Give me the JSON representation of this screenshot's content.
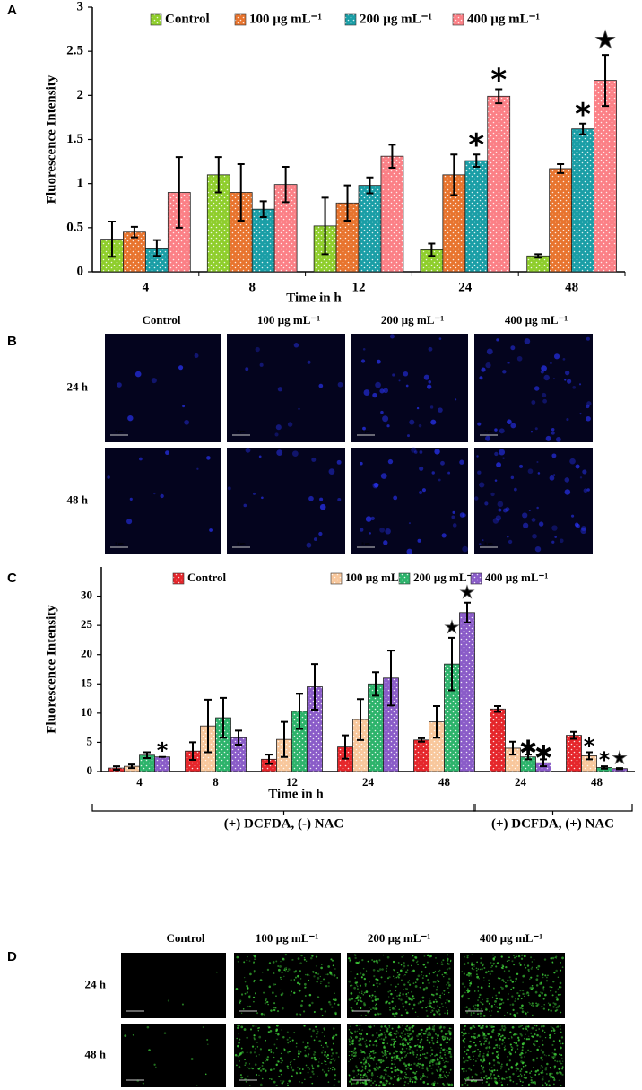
{
  "chart_data": [
    {
      "type": "bar",
      "panel": "A",
      "xlabel": "Time in h",
      "ylabel": "Fluorescence Intensity",
      "categories": [
        "4",
        "8",
        "12",
        "24",
        "48"
      ],
      "ylim": [
        0,
        3
      ],
      "yticks": [
        0,
        0.5,
        1,
        1.5,
        2,
        2.5,
        3
      ],
      "series": [
        {
          "name": "Control",
          "color": "#8fce2c",
          "values": [
            0.37,
            1.1,
            0.52,
            0.25,
            0.18
          ],
          "errors": [
            0.2,
            0.2,
            0.32,
            0.07,
            0.02
          ],
          "markers": [
            null,
            null,
            null,
            null,
            null
          ]
        },
        {
          "name": "100 µg mL⁻¹",
          "color": "#e8742e",
          "values": [
            0.45,
            0.9,
            0.78,
            1.1,
            1.17
          ],
          "errors": [
            0.06,
            0.32,
            0.2,
            0.23,
            0.05
          ],
          "markers": [
            null,
            null,
            null,
            null,
            null
          ]
        },
        {
          "name": "200 µg mL⁻¹",
          "color": "#1a9ea6",
          "values": [
            0.27,
            0.71,
            0.98,
            1.26,
            1.62
          ],
          "errors": [
            0.09,
            0.09,
            0.09,
            0.07,
            0.06
          ],
          "markers": [
            null,
            null,
            null,
            "*",
            "*"
          ]
        },
        {
          "name": "400 µg mL⁻¹",
          "color": "#fb8086",
          "values": [
            0.9,
            0.99,
            1.31,
            1.99,
            2.17
          ],
          "errors": [
            0.4,
            0.2,
            0.13,
            0.08,
            0.29
          ],
          "markers": [
            null,
            null,
            null,
            "*",
            "★"
          ]
        }
      ]
    },
    {
      "type": "bar",
      "panel": "C",
      "xlabel": "Time in h",
      "ylabel": "Fluorescence Intensity",
      "categories": [
        "4",
        "8",
        "12",
        "24",
        "48",
        "24",
        "48"
      ],
      "groups": [
        {
          "label": "(+) DCFDA, (-) NAC",
          "from": 0,
          "to": 4
        },
        {
          "label": "(+) DCFDA, (+) NAC",
          "from": 5,
          "to": 6
        }
      ],
      "ylim": [
        0,
        35
      ],
      "yticks": [
        0,
        5,
        10,
        15,
        20,
        25,
        30
      ],
      "series": [
        {
          "name": "Control",
          "color": "#e5262b",
          "values": [
            0.6,
            3.5,
            2.1,
            4.2,
            5.4,
            10.7,
            6.2
          ],
          "errors": [
            0.3,
            1.5,
            0.8,
            2,
            0.3,
            0.5,
            0.6
          ],
          "markers": [
            null,
            null,
            null,
            null,
            null,
            null,
            null
          ]
        },
        {
          "name": "100 µg mL⁻¹",
          "color": "#f8c79c",
          "values": [
            0.9,
            7.8,
            5.5,
            8.9,
            8.5,
            4,
            2.7
          ],
          "errors": [
            0.3,
            4.5,
            3,
            3.5,
            2.7,
            1.1,
            0.6
          ],
          "markers": [
            null,
            null,
            null,
            null,
            null,
            null,
            "*"
          ]
        },
        {
          "name": "200 µg mL⁻¹",
          "color": "#2db36b",
          "values": [
            2.8,
            9.2,
            10.3,
            15,
            18.4,
            2.5,
            0.7
          ],
          "errors": [
            0.5,
            3.4,
            3,
            2,
            4.5,
            0.4,
            0.2
          ],
          "markers": [
            null,
            null,
            null,
            null,
            "★",
            "✱",
            "*"
          ]
        },
        {
          "name": "400 µg mL⁻¹",
          "color": "#8a5cc8",
          "values": [
            2.5,
            5.8,
            14.5,
            16,
            27.2,
            1.5,
            0.5
          ],
          "errors": [
            0,
            1.2,
            3.9,
            4.7,
            1.7,
            0.6,
            0.1
          ],
          "markers": [
            "*",
            null,
            null,
            null,
            "★",
            "✱",
            "★"
          ]
        }
      ]
    }
  ],
  "image_panels": [
    {
      "panel": "B",
      "columns": [
        "Control",
        "100 µg mL⁻¹",
        "200 µg mL⁻¹",
        "400 µg mL⁻¹"
      ],
      "rows": [
        "24 h",
        "48 h"
      ],
      "scale_bar": "5 µm",
      "background": "#04041e",
      "color": "#2a35ff"
    },
    {
      "panel": "D",
      "columns": [
        "Control",
        "100 µg mL⁻¹",
        "200 µg mL⁻¹",
        "400 µg mL⁻¹"
      ],
      "rows": [
        "24 h",
        "48 h"
      ],
      "scale_bar": "50 µm",
      "background": "#000000",
      "color": "#3fd03a"
    }
  ]
}
